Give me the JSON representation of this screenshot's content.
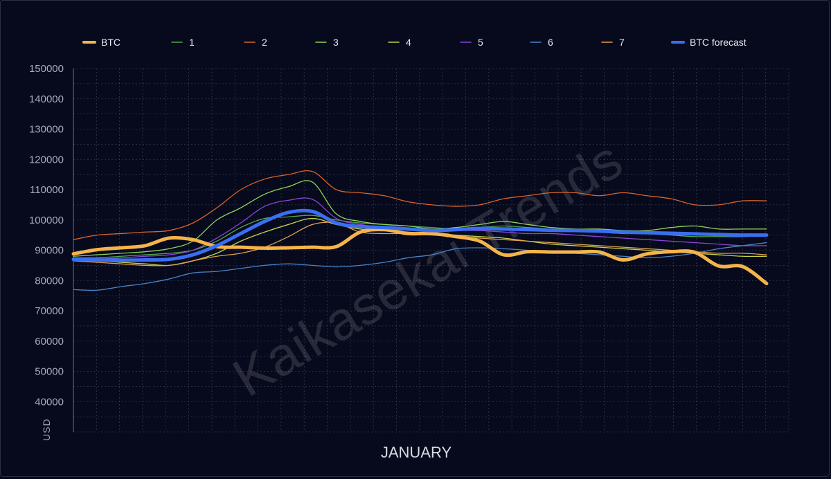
{
  "chart_data": {
    "type": "line",
    "title": "",
    "xlabel": "JANUARY",
    "ylabel": "USD",
    "ylim": [
      30000,
      150000
    ],
    "yticks": [
      40000,
      50000,
      60000,
      70000,
      80000,
      90000,
      100000,
      110000,
      120000,
      130000,
      140000,
      150000
    ],
    "x_points": 31,
    "grid": true,
    "legend_position": "top",
    "watermark": "Kaikasekai Trends",
    "series": [
      {
        "name": "BTC",
        "color": "#f5b44a",
        "style": "thick",
        "values": [
          88800,
          90200,
          90800,
          91500,
          94000,
          93500,
          91200,
          91000,
          90700,
          90800,
          91000,
          91200,
          96000,
          96800,
          95500,
          95500,
          94500,
          93000,
          88500,
          89500,
          89400,
          89400,
          89400,
          86800,
          88800,
          89500,
          89300,
          84800,
          84600,
          79000
        ]
      },
      {
        "name": "1",
        "color": "#4fa84a",
        "style": "thin",
        "values": [
          87500,
          87500,
          88000,
          88500,
          89000,
          90000,
          93000,
          97500,
          100500,
          101000,
          101500,
          100000,
          99000,
          98500,
          98000,
          97500,
          97000,
          97500,
          98000,
          97500,
          97000,
          96500,
          96000,
          95500,
          95500,
          95000,
          94500,
          94500,
          94500,
          95000
        ]
      },
      {
        "name": "2",
        "color": "#d9642a",
        "style": "thin",
        "values": [
          93500,
          95000,
          95500,
          96000,
          96500,
          99000,
          104000,
          110000,
          113500,
          115000,
          116000,
          110000,
          109000,
          108000,
          106000,
          105000,
          104500,
          105000,
          107000,
          108000,
          109000,
          109000,
          108000,
          109000,
          108000,
          107000,
          105000,
          105000,
          106300,
          106300
        ]
      },
      {
        "name": "3",
        "color": "#8ed35a",
        "style": "thin",
        "values": [
          88000,
          88500,
          89000,
          89500,
          90500,
          93000,
          100000,
          104000,
          108500,
          111000,
          112500,
          102000,
          99500,
          98500,
          98000,
          97000,
          97500,
          98500,
          99500,
          98500,
          97500,
          97000,
          97000,
          96500,
          96500,
          97500,
          98000,
          97000,
          97000,
          97000
        ]
      },
      {
        "name": "4",
        "color": "#c9d24a",
        "style": "thin",
        "values": [
          87000,
          86500,
          86000,
          85500,
          85000,
          86500,
          89000,
          93000,
          96000,
          98500,
          100500,
          98500,
          97000,
          96500,
          96000,
          95500,
          95000,
          94500,
          94000,
          93000,
          92000,
          91500,
          91000,
          90500,
          90000,
          89500,
          89000,
          88500,
          88000,
          88000
        ]
      },
      {
        "name": "5",
        "color": "#8a45d6",
        "style": "thin",
        "values": [
          86500,
          87000,
          87500,
          88000,
          88500,
          90000,
          94000,
          99000,
          104500,
          106500,
          106800,
          100500,
          98500,
          97500,
          97000,
          96500,
          96500,
          96500,
          96000,
          95500,
          95500,
          95000,
          94500,
          94000,
          93500,
          93000,
          92500,
          92000,
          91500,
          91500
        ]
      },
      {
        "name": "6",
        "color": "#4a82c8",
        "style": "thin",
        "values": [
          77000,
          76800,
          78000,
          79000,
          80500,
          82500,
          83000,
          84000,
          85000,
          85500,
          85000,
          84500,
          85000,
          86000,
          87500,
          88500,
          90500,
          90800,
          90500,
          90000,
          89500,
          89000,
          88500,
          88000,
          87500,
          88000,
          89000,
          90500,
          91500,
          92500
        ]
      },
      {
        "name": "7",
        "color": "#e0a050",
        "style": "thin",
        "values": [
          86500,
          86000,
          85500,
          85000,
          85000,
          86500,
          88000,
          89000,
          91000,
          94500,
          98500,
          99000,
          96000,
          95500,
          95500,
          95000,
          94500,
          94000,
          93500,
          93000,
          92500,
          92000,
          91500,
          91000,
          90500,
          90000,
          89500,
          89000,
          89000,
          88500
        ]
      },
      {
        "name": "BTC forecast",
        "color": "#3a6ef2",
        "style": "thick",
        "values": [
          87000,
          86800,
          86700,
          86800,
          87000,
          88500,
          91500,
          95500,
          99500,
          102500,
          102800,
          99000,
          97800,
          97500,
          97000,
          96500,
          96800,
          97200,
          97000,
          96800,
          96600,
          96500,
          96300,
          96000,
          95800,
          95600,
          95400,
          95200,
          95000,
          95000
        ]
      }
    ]
  }
}
